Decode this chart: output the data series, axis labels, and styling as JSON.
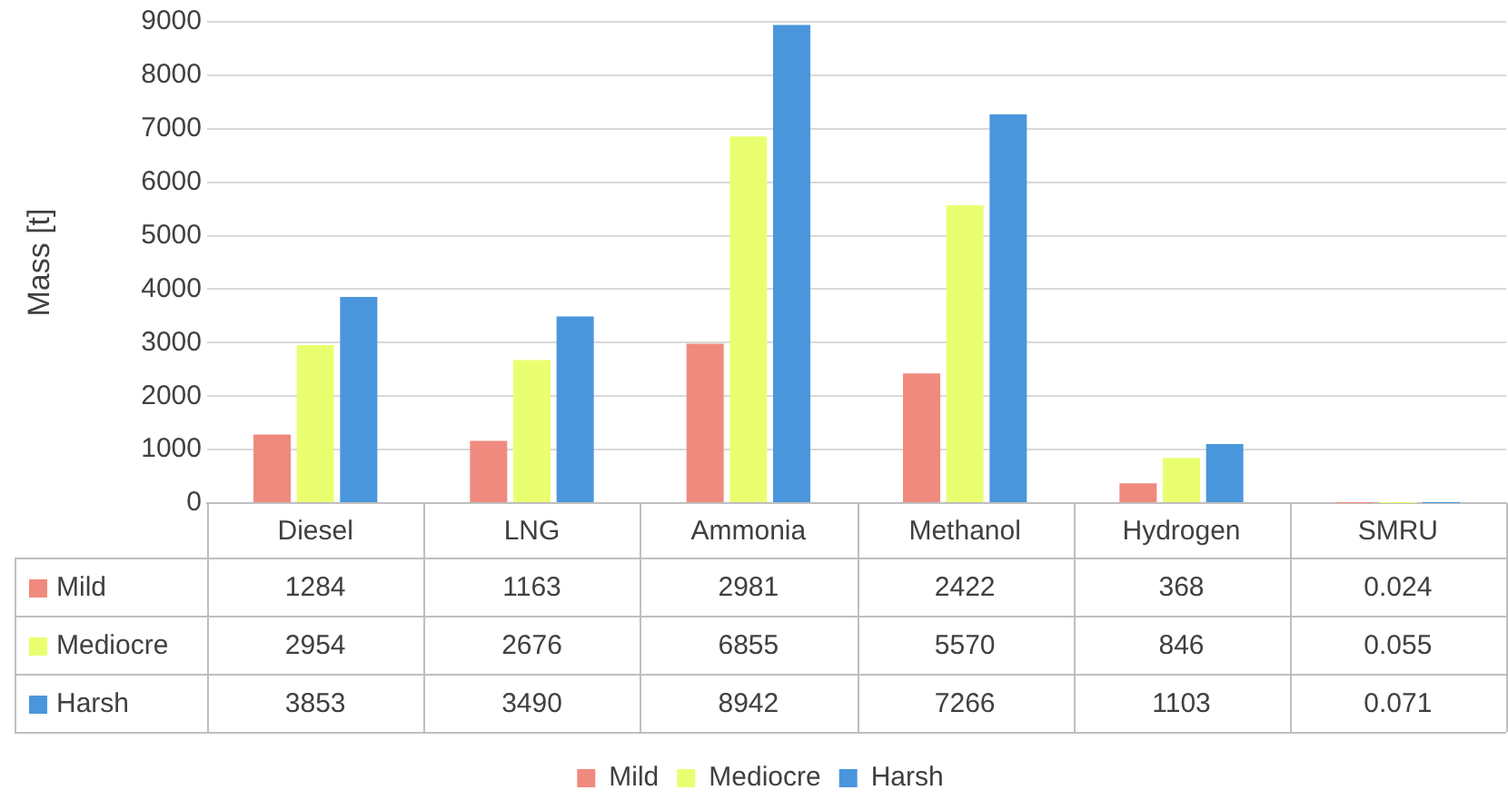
{
  "chart_data": {
    "type": "bar",
    "ylabel": "Mass [t]",
    "categories": [
      "Diesel",
      "LNG",
      "Ammonia",
      "Methanol",
      "Hydrogen",
      "SMRU"
    ],
    "series": [
      {
        "name": "Mild",
        "color": "#f08a7e",
        "values": [
          1284,
          1163,
          2981,
          2422,
          368,
          0.024
        ]
      },
      {
        "name": "Mediocre",
        "color": "#eaff70",
        "values": [
          2954,
          2676,
          6855,
          5570,
          846,
          0.055
        ]
      },
      {
        "name": "Harsh",
        "color": "#4a96dc",
        "values": [
          3853,
          3490,
          8942,
          7266,
          1103,
          0.071
        ]
      }
    ],
    "ylim": [
      0,
      9000
    ],
    "yticks": [
      0,
      1000,
      2000,
      3000,
      4000,
      5000,
      6000,
      7000,
      8000,
      9000
    ],
    "grid": "y",
    "legend": "bottom",
    "data_labels": true
  }
}
